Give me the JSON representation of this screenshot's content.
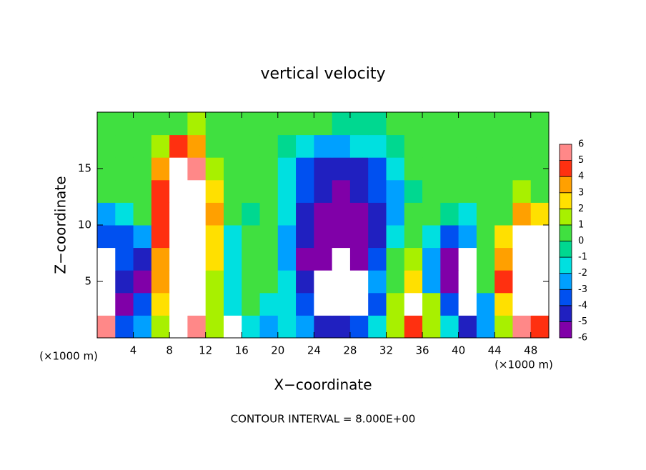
{
  "chart_data": {
    "type": "heatmap",
    "title": "vertical velocity",
    "xlabel": "X−coordinate",
    "ylabel": "Z−coordinate",
    "x_unit_label": "(×1000 m)",
    "x_unit_label_right": "(×1000 m)",
    "footer": "CONTOUR INTERVAL = 8.000E+00",
    "x": [
      1,
      3,
      5,
      7,
      9,
      11,
      13,
      15,
      17,
      19,
      21,
      23,
      25,
      27,
      29,
      31,
      33,
      35,
      37,
      39,
      41,
      43,
      45,
      47,
      49
    ],
    "y": [
      1,
      3,
      5,
      7,
      9,
      11,
      13,
      15,
      17,
      19
    ],
    "z": [
      [
        6,
        -3,
        -2,
        2,
        8,
        6,
        2,
        7,
        -1,
        -2,
        -1,
        -2,
        -4,
        -4,
        -3,
        -1,
        2,
        5,
        2,
        -1,
        -4,
        -2,
        2,
        6,
        5
      ],
      [
        8,
        -5,
        -3,
        3,
        10,
        9,
        2,
        -1,
        0.3,
        -1,
        -1,
        -3,
        -7,
        -8,
        -7,
        -3,
        2,
        7,
        2,
        -3,
        -8,
        -2,
        3,
        9,
        8
      ],
      [
        8,
        -4,
        -5,
        4,
        10,
        9,
        2,
        -1,
        0.3,
        0.3,
        -1,
        -4,
        -7,
        -8,
        -7,
        -2,
        1,
        3,
        -2,
        -5,
        -8,
        0.5,
        5,
        10,
        9
      ],
      [
        7,
        -3.5,
        -4,
        4,
        10,
        9,
        3,
        -1,
        0.5,
        0.3,
        -2,
        -5,
        -5.5,
        -7,
        -6,
        -3,
        0.3,
        2,
        -2,
        -5,
        -7,
        0.3,
        4,
        9,
        9
      ],
      [
        -3,
        -3,
        -2,
        5,
        10,
        9,
        3,
        -1,
        0.3,
        0.3,
        -2,
        -4.5,
        -5,
        -5.5,
        -5,
        -4,
        -1.5,
        0.5,
        -1,
        -3,
        -2,
        0.3,
        3,
        7,
        8
      ],
      [
        -2,
        -1,
        0.5,
        5,
        10,
        9,
        4,
        0.3,
        -0.5,
        0.5,
        -1.5,
        -4,
        -5,
        -5,
        -5,
        -4,
        -2,
        0.3,
        0.5,
        -0.5,
        -1,
        0.5,
        1,
        4,
        3
      ],
      [
        0.5,
        0.3,
        0.5,
        5,
        9,
        8,
        3,
        0.5,
        0.3,
        0.3,
        -1.5,
        -3.5,
        -4.5,
        -5,
        -4.5,
        -3.5,
        -2,
        -0.5,
        0.3,
        0.3,
        0.5,
        0.5,
        0.5,
        2,
        1
      ],
      [
        0.5,
        0.5,
        0.5,
        4,
        8,
        6,
        2,
        0.5,
        0.2,
        0.2,
        -1,
        -3,
        -4,
        -4.5,
        -4,
        -3,
        -1.5,
        0.3,
        0.3,
        0.3,
        0.5,
        0.5,
        0.5,
        1,
        0.5
      ],
      [
        0.5,
        0.5,
        0.3,
        2,
        5,
        4,
        1,
        0.5,
        0.3,
        0.2,
        -0.5,
        -1.5,
        -2,
        -2,
        -1.5,
        -1,
        -0.5,
        0.3,
        0.3,
        0.3,
        0.5,
        0.5,
        0.3,
        0.5,
        0.5
      ],
      [
        0.5,
        0.5,
        0.5,
        0.5,
        1,
        2,
        0.5,
        0.5,
        0.3,
        0.3,
        0.2,
        0.2,
        0.2,
        -0.5,
        -0.5,
        -0.3,
        0.2,
        0.3,
        0.3,
        0.3,
        0.3,
        0.3,
        0.5,
        0.5,
        0.5
      ]
    ],
    "xlim": [
      0,
      50
    ],
    "ylim": [
      0,
      20
    ],
    "xticks": [
      4,
      8,
      12,
      16,
      20,
      24,
      28,
      32,
      36,
      40,
      44,
      48
    ],
    "yticks": [
      5,
      10,
      15
    ],
    "out_of_range_color": "#ffffff",
    "colorbar": {
      "levels": [
        -6,
        -5,
        -4,
        -3,
        -2,
        -1,
        0,
        1,
        2,
        3,
        4,
        5,
        6
      ],
      "colors": [
        "#8000a8",
        "#2020c0",
        "#0050f0",
        "#00a0ff",
        "#00e0e0",
        "#00d890",
        "#40e040",
        "#a8f000",
        "#ffe000",
        "#ffa000",
        "#ff3010",
        "#ff8888"
      ]
    }
  }
}
